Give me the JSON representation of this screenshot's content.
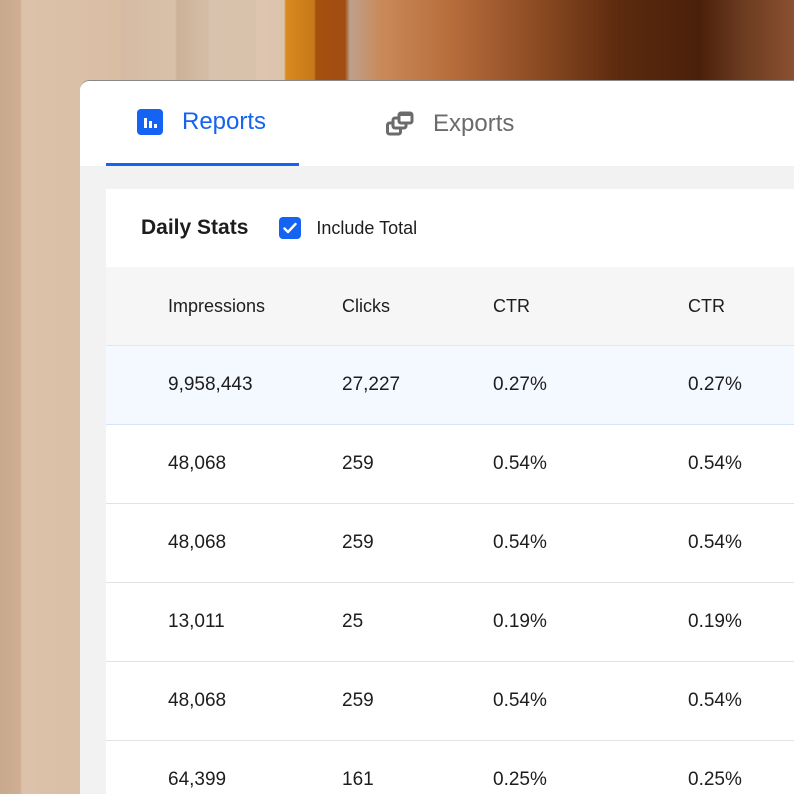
{
  "tabs": [
    {
      "label": "Reports",
      "icon": "bar-chart-icon",
      "active": true
    },
    {
      "label": "Exports",
      "icon": "stacked-windows-icon",
      "active": false
    }
  ],
  "card": {
    "title": "Daily Stats",
    "include_total": {
      "label": "Include Total",
      "checked": true
    }
  },
  "table": {
    "columns": [
      "Impressions",
      "Clicks",
      "CTR",
      "CTR"
    ],
    "rows": [
      [
        "9,958,443",
        "27,227",
        "0.27%",
        "0.27%"
      ],
      [
        "48,068",
        "259",
        "0.54%",
        "0.54%"
      ],
      [
        "48,068",
        "259",
        "0.54%",
        "0.54%"
      ],
      [
        "13,011",
        "25",
        "0.19%",
        "0.19%"
      ],
      [
        "48,068",
        "259",
        "0.54%",
        "0.54%"
      ],
      [
        "64,399",
        "161",
        "0.25%",
        "0.25%"
      ]
    ]
  },
  "colors": {
    "accent": "#1463f3",
    "highlight_row": "#f4f8ff"
  }
}
